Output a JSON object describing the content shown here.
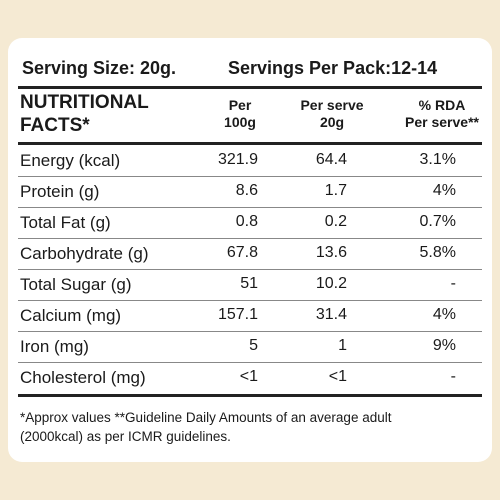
{
  "header": {
    "serving_size": "Serving Size: 20g.",
    "servings_per_pack": "Servings Per Pack:12-14"
  },
  "table": {
    "columns": [
      [
        "NUTRITIONAL",
        "FACTS*"
      ],
      [
        "Per",
        "100g"
      ],
      [
        "Per serve",
        "20g"
      ],
      [
        "% RDA",
        "Per serve**"
      ]
    ],
    "rows": [
      [
        "Energy (kcal)",
        "321.9",
        "64.4",
        "3.1%"
      ],
      [
        "Protein (g)",
        "8.6",
        "1.7",
        "4%"
      ],
      [
        "Total Fat (g)",
        "0.8",
        "0.2",
        "0.7%"
      ],
      [
        "Carbohydrate (g)",
        "67.8",
        "13.6",
        "5.8%"
      ],
      [
        "Total Sugar (g)",
        "51",
        "10.2",
        "-"
      ],
      [
        "Calcium (mg)",
        "157.1",
        "31.4",
        "4%"
      ],
      [
        "Iron (mg)",
        "5",
        "1",
        "9%"
      ],
      [
        "Cholesterol (mg)",
        "<1",
        "<1",
        "-"
      ]
    ]
  },
  "footnote": [
    "*Approx values **Guideline Daily Amounts of an average adult",
    "(2000kcal) as per ICMR guidelines."
  ]
}
